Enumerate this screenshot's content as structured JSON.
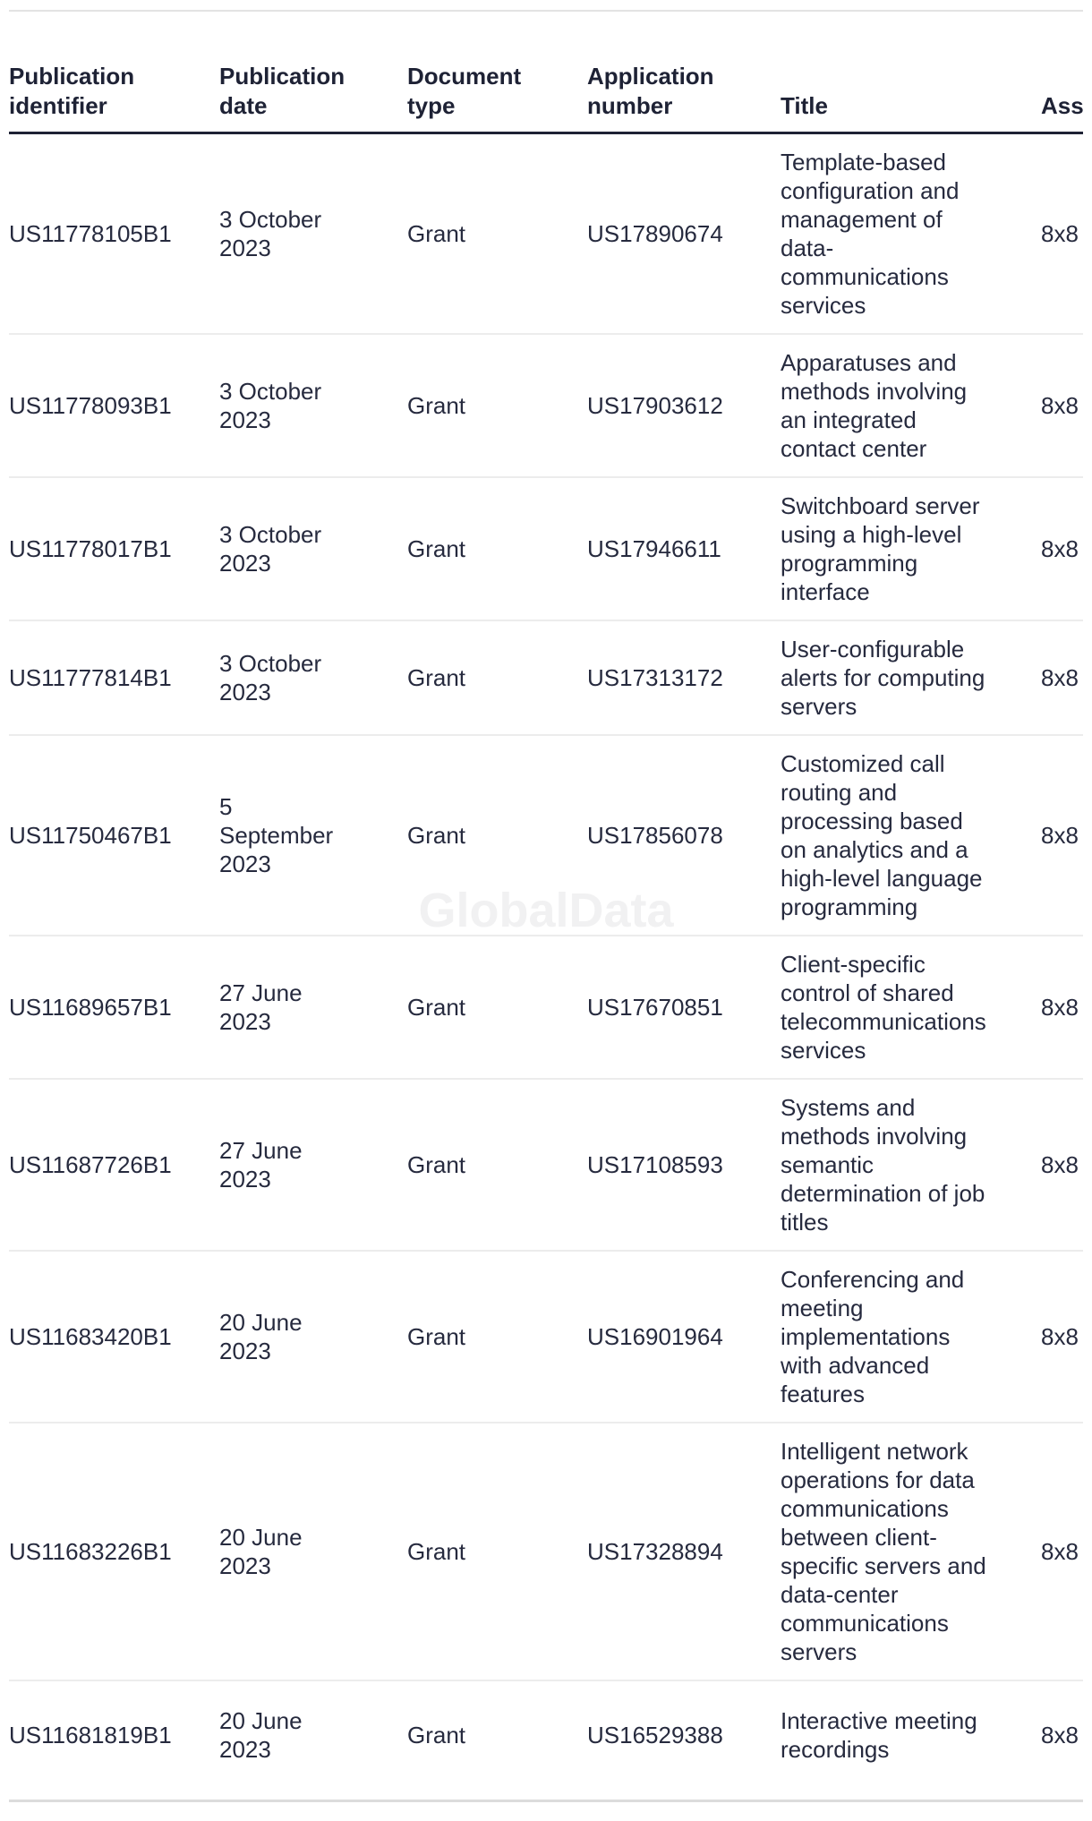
{
  "watermark": "GlobalData",
  "colors": {
    "text": "#262a3e",
    "header_text": "#1e2235",
    "row_divider": "#ececec",
    "header_divider": "#1e2235",
    "top_divider": "#e3e3e3",
    "bottom_divider": "#dcdcdc",
    "watermark_color": "#f1f1f2",
    "background": "#ffffff"
  },
  "table": {
    "columns": [
      {
        "id": "publication_identifier",
        "label": "Publication\nidentifier"
      },
      {
        "id": "publication_date",
        "label": "Publication\ndate"
      },
      {
        "id": "document_type",
        "label": "Document\ntype"
      },
      {
        "id": "application_number",
        "label": "Application\nnumber"
      },
      {
        "id": "title",
        "label": "Title"
      },
      {
        "id": "assignee",
        "label": "Ass"
      }
    ],
    "rows": [
      {
        "publication_identifier": "US11778105B1",
        "publication_date": "3 October\n2023",
        "document_type": "Grant",
        "application_number": "US17890674",
        "title": "Template-based\nconfiguration and\nmanagement of\ndata-\ncommunications\nservices",
        "assignee": "8x8"
      },
      {
        "publication_identifier": "US11778093B1",
        "publication_date": "3 October\n2023",
        "document_type": "Grant",
        "application_number": "US17903612",
        "title": "Apparatuses and\nmethods involving\nan integrated\ncontact center",
        "assignee": "8x8"
      },
      {
        "publication_identifier": "US11778017B1",
        "publication_date": "3 October\n2023",
        "document_type": "Grant",
        "application_number": "US17946611",
        "title": "Switchboard server\nusing a high-level\nprogramming\ninterface",
        "assignee": "8x8"
      },
      {
        "publication_identifier": "US11777814B1",
        "publication_date": "3 October\n2023",
        "document_type": "Grant",
        "application_number": "US17313172",
        "title": "User-configurable\nalerts for computing\nservers",
        "assignee": "8x8"
      },
      {
        "publication_identifier": "US11750467B1",
        "publication_date": "5\nSeptember\n2023",
        "document_type": "Grant",
        "application_number": "US17856078",
        "title": "Customized call\nrouting and\nprocessing based\non analytics and a\nhigh-level language\nprogramming",
        "assignee": "8x8"
      },
      {
        "publication_identifier": "US11689657B1",
        "publication_date": "27 June\n2023",
        "document_type": "Grant",
        "application_number": "US17670851",
        "title": "Client-specific\ncontrol of shared\ntelecommunications\nservices",
        "assignee": "8x8"
      },
      {
        "publication_identifier": "US11687726B1",
        "publication_date": "27 June\n2023",
        "document_type": "Grant",
        "application_number": "US17108593",
        "title": "Systems and\nmethods involving\nsemantic\ndetermination of job\ntitles",
        "assignee": "8x8"
      },
      {
        "publication_identifier": "US11683420B1",
        "publication_date": "20 June\n2023",
        "document_type": "Grant",
        "application_number": "US16901964",
        "title": "Conferencing and\nmeeting\nimplementations\nwith advanced\nfeatures",
        "assignee": "8x8"
      },
      {
        "publication_identifier": "US11683226B1",
        "publication_date": "20 June\n2023",
        "document_type": "Grant",
        "application_number": "US17328894",
        "title": "Intelligent network\noperations for data\ncommunications\nbetween client-\nspecific servers and\ndata-center\ncommunications\nservers",
        "assignee": "8x8"
      },
      {
        "publication_identifier": "US11681819B1",
        "publication_date": "20 June\n2023",
        "document_type": "Grant",
        "application_number": "US16529388",
        "title": "Interactive meeting\nrecordings",
        "assignee": "8x8"
      }
    ]
  }
}
